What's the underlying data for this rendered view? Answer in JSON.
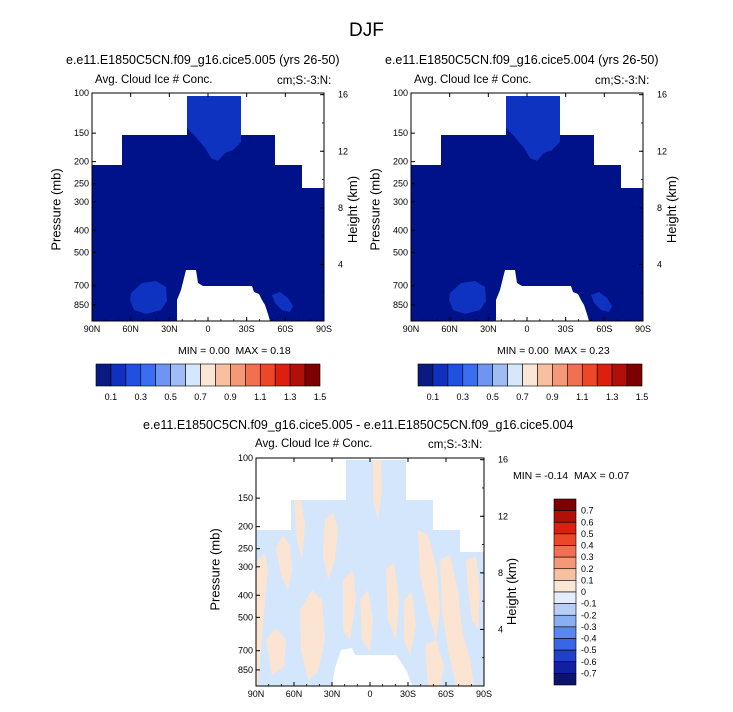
{
  "figure": {
    "season": "DJF",
    "panel_a": {
      "case": "e.e11.E1850C5CN.f09_g16.cice5.005 (yrs 26-50)",
      "variable": "Avg. Cloud Ice # Conc.",
      "units": "cm;S:-3:N:",
      "min_label": "MIN =",
      "min": "0.00",
      "max_label": "MAX =",
      "max": "0.18"
    },
    "panel_b": {
      "case": "e.e11.E1850C5CN.f09_g16.cice5.004 (yrs 26-50)",
      "variable": "Avg. Cloud Ice # Conc.",
      "units": "cm;S:-3:N:",
      "min_label": "MIN =",
      "min": "0.00",
      "max_label": "MAX =",
      "max": "0.23"
    },
    "panel_diff": {
      "case": "e.e11.E1850C5CN.f09_g16.cice5.005 - e.e11.E1850C5CN.f09_g16.cice5.004",
      "variable": "Avg. Cloud Ice # Conc.",
      "units": "cm;S:-3:N:",
      "min_label": "MIN =",
      "min": "-0.14",
      "max_label": "MAX =",
      "max": "0.07"
    },
    "axes": {
      "ylabel": "Pressure (mb)",
      "y2label": "Height (km)"
    }
  },
  "chart_data": [
    {
      "type": "heatmap",
      "title": "e.e11.E1850C5CN.f09_g16.cice5.005 (yrs 26-50)",
      "xlabel": "",
      "ylabel": "Pressure (mb)",
      "y2label": "Height (km)",
      "x_ticks": [
        "90N",
        "60N",
        "30N",
        "0",
        "30S",
        "60S",
        "90S"
      ],
      "x_values": [
        90,
        60,
        30,
        0,
        -30,
        -60,
        -90
      ],
      "y_ticks": [
        "100",
        "150",
        "200",
        "250",
        "300",
        "400",
        "500",
        "700",
        "850"
      ],
      "y_values": [
        100,
        150,
        200,
        250,
        300,
        400,
        500,
        700,
        850
      ],
      "y2_ticks": [
        "16",
        "12",
        "8",
        "4"
      ],
      "xlim": [
        90,
        -90
      ],
      "ylim": [
        100,
        1000
      ],
      "min": 0.0,
      "max": 0.18,
      "contour_levels": [
        0.1,
        0.3,
        0.5,
        0.7,
        0.9,
        1.1,
        1.3,
        1.5
      ]
    },
    {
      "type": "heatmap",
      "title": "e.e11.E1850C5CN.f09_g16.cice5.004 (yrs 26-50)",
      "xlabel": "",
      "ylabel": "Pressure (mb)",
      "y2label": "Height (km)",
      "x_ticks": [
        "90N",
        "60N",
        "30N",
        "0",
        "30S",
        "60S",
        "90S"
      ],
      "x_values": [
        90,
        60,
        30,
        0,
        -30,
        -60,
        -90
      ],
      "y_ticks": [
        "100",
        "150",
        "200",
        "250",
        "300",
        "400",
        "500",
        "700",
        "850"
      ],
      "y_values": [
        100,
        150,
        200,
        250,
        300,
        400,
        500,
        700,
        850
      ],
      "y2_ticks": [
        "16",
        "12",
        "8",
        "4"
      ],
      "xlim": [
        90,
        -90
      ],
      "ylim": [
        100,
        1000
      ],
      "min": 0.0,
      "max": 0.23,
      "contour_levels": [
        0.1,
        0.3,
        0.5,
        0.7,
        0.9,
        1.1,
        1.3,
        1.5
      ]
    },
    {
      "type": "heatmap",
      "title": "e.e11.E1850C5CN.f09_g16.cice5.005 - e.e11.E1850C5CN.f09_g16.cice5.004",
      "xlabel": "",
      "ylabel": "Pressure (mb)",
      "y2label": "Height (km)",
      "x_ticks": [
        "90N",
        "60N",
        "30N",
        "0",
        "30S",
        "60S",
        "90S"
      ],
      "x_values": [
        90,
        60,
        30,
        0,
        -30,
        -60,
        -90
      ],
      "y_ticks": [
        "100",
        "150",
        "200",
        "250",
        "300",
        "400",
        "500",
        "700",
        "850"
      ],
      "y_values": [
        100,
        150,
        200,
        250,
        300,
        400,
        500,
        700,
        850
      ],
      "y2_ticks": [
        "16",
        "12",
        "8",
        "4"
      ],
      "xlim": [
        90,
        -90
      ],
      "ylim": [
        100,
        1000
      ],
      "min": -0.14,
      "max": 0.07,
      "contour_levels": [
        -0.7,
        -0.6,
        -0.5,
        -0.4,
        -0.3,
        -0.2,
        -0.1,
        0,
        0.1,
        0.2,
        0.3,
        0.4,
        0.5,
        0.6,
        0.7
      ]
    }
  ],
  "colorbar_top": {
    "labels": [
      "0.1",
      "0.3",
      "0.5",
      "0.7",
      "0.9",
      "1.1",
      "1.3",
      "1.5"
    ],
    "colors": [
      "#0a1a80",
      "#1030c0",
      "#2050e0",
      "#3a6ef0",
      "#6e96f0",
      "#a0bcf4",
      "#d6e6fb",
      "#fbe6d6",
      "#f8c0a0",
      "#f49878",
      "#f07050",
      "#ec4828",
      "#dc2010",
      "#b01008",
      "#7c0000"
    ]
  },
  "colorbar_diff": {
    "labels": [
      "0.7",
      "0.6",
      "0.5",
      "0.4",
      "0.3",
      "0.2",
      "0.1",
      "0",
      "-0.1",
      "-0.2",
      "-0.3",
      "-0.4",
      "-0.5",
      "-0.6",
      "-0.7"
    ],
    "colors": [
      "#7c0000",
      "#b01008",
      "#dc2010",
      "#ec4828",
      "#f07050",
      "#f49878",
      "#f8c0a0",
      "#fbe6d6",
      "#e4eefb",
      "#b8cef6",
      "#8aaef2",
      "#5a86ee",
      "#3a66e6",
      "#2040c8",
      "#1020a0",
      "#0a1470"
    ]
  }
}
